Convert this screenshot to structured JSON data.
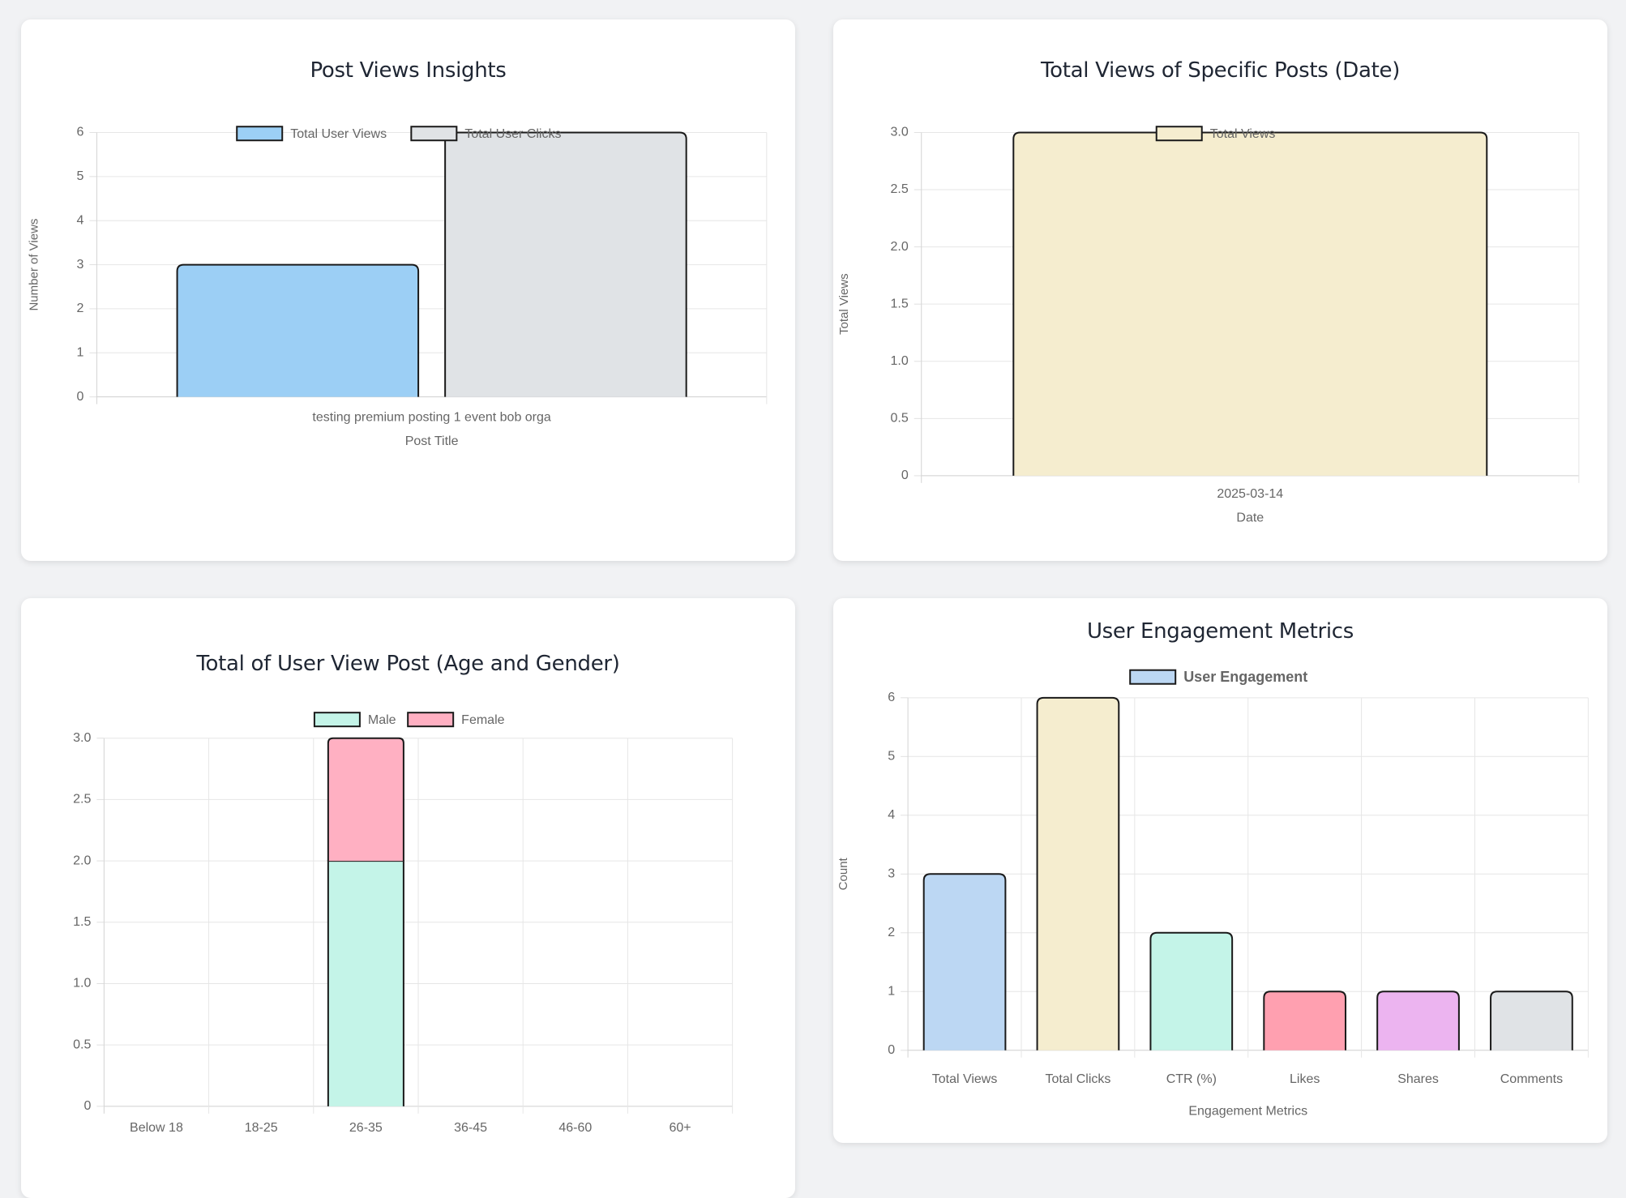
{
  "charts": [
    {
      "id": "card1",
      "title": "Post Views Insights",
      "chart_data": {
        "type": "bar",
        "title": "Post Views Insights",
        "categories": [
          "testing premium posting 1 event bob orga"
        ],
        "series": [
          {
            "name": "Total User Views",
            "values": [
              3
            ],
            "color": "#9ccff5"
          },
          {
            "name": "Total User Clicks",
            "values": [
              6
            ],
            "color": "#e0e3e6"
          }
        ],
        "xlabel": "Post Title",
        "ylabel": "Number of Views",
        "ylim": [
          0,
          6
        ],
        "yticks": [
          0,
          1,
          2,
          3,
          4,
          5,
          6
        ],
        "ytick_labels": [
          "0",
          "1",
          "2",
          "3",
          "4",
          "5",
          "6"
        ],
        "grid": true,
        "legend": "top"
      }
    },
    {
      "id": "card2",
      "title": "Total Views of Specific Posts (Date)",
      "chart_data": {
        "type": "bar",
        "title": "Total Views of Specific Posts (Date)",
        "categories": [
          "2025-03-14"
        ],
        "series": [
          {
            "name": "Total Views",
            "values": [
              3
            ],
            "color": "#f5edcf"
          }
        ],
        "xlabel": "Date",
        "ylabel": "Total Views",
        "ylim": [
          0,
          3
        ],
        "yticks": [
          0,
          0.5,
          1,
          1.5,
          2,
          2.5,
          3
        ],
        "ytick_labels": [
          "0",
          "0.5",
          "1.0",
          "1.5",
          "2.0",
          "2.5",
          "3.0"
        ],
        "grid": true,
        "legend": "top"
      }
    },
    {
      "id": "card3",
      "title": "Total of User View Post (Age and Gender)",
      "chart_data": {
        "type": "bar",
        "stacked": true,
        "title": "Total of User View Post (Age and Gender)",
        "categories": [
          "Below 18",
          "18-25",
          "26-35",
          "36-45",
          "46-60",
          "60+"
        ],
        "series": [
          {
            "name": "Male",
            "values": [
              0,
              0,
              2,
              0,
              0,
              0
            ],
            "color": "#c4f4e8"
          },
          {
            "name": "Female",
            "values": [
              0,
              0,
              1,
              0,
              0,
              0
            ],
            "color": "#ffb0c2"
          }
        ],
        "xlabel": "",
        "ylabel": "",
        "ylim": [
          0,
          3
        ],
        "yticks": [
          0,
          0.5,
          1,
          1.5,
          2,
          2.5,
          3
        ],
        "ytick_labels": [
          "0",
          "0.5",
          "1.0",
          "1.5",
          "2.0",
          "2.5",
          "3.0"
        ],
        "grid": true,
        "legend": "top"
      }
    },
    {
      "id": "card4",
      "title": "User Engagement Metrics",
      "chart_data": {
        "type": "bar",
        "title": "User Engagement Metrics",
        "categories": [
          "Total Views",
          "Total Clicks",
          "CTR (%)",
          "Likes",
          "Shares",
          "Comments"
        ],
        "series": [
          {
            "name": "User Engagement",
            "values": [
              3,
              6,
              2,
              1,
              1,
              1
            ],
            "colors": [
              "#bcd7f3",
              "#f5edcf",
              "#c4f4e8",
              "#ffa0b0",
              "#ecb4f0",
              "#e0e3e6"
            ]
          }
        ],
        "xlabel": "Engagement Metrics",
        "ylabel": "Count",
        "ylim": [
          0,
          6
        ],
        "yticks": [
          0,
          1,
          2,
          3,
          4,
          5,
          6
        ],
        "ytick_labels": [
          "0",
          "1",
          "2",
          "3",
          "4",
          "5",
          "6"
        ],
        "grid": true,
        "legend": "top",
        "legend_color": "#bcd7f3"
      }
    }
  ]
}
